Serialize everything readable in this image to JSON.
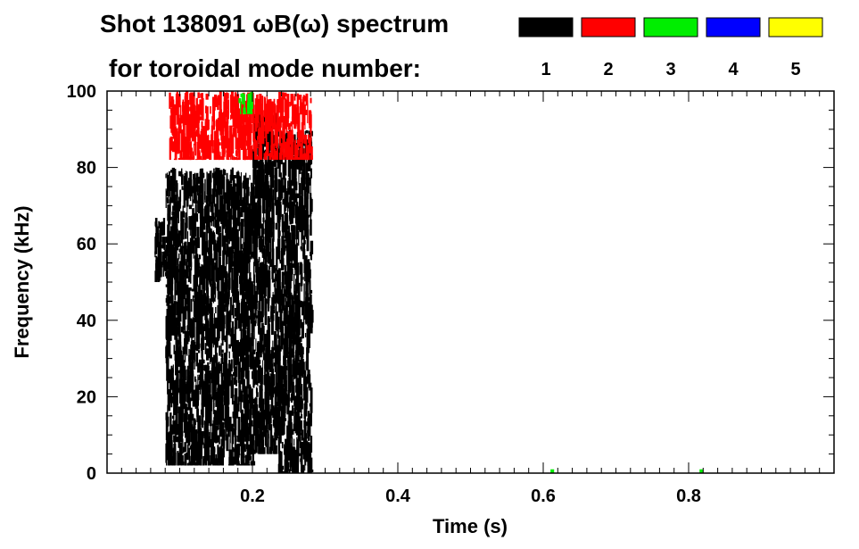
{
  "chart_data": {
    "type": "heatmap",
    "title_line1": "Shot 138091 ωB(ω) spectrum",
    "title_line2": "for toroidal mode number:",
    "xlabel": "Time (s)",
    "ylabel": "Frequency (kHz)",
    "xlim": [
      0.0,
      1.0
    ],
    "ylim": [
      0,
      100
    ],
    "x_ticks": [
      0.2,
      0.4,
      0.6,
      0.8
    ],
    "x_tick_labels": [
      "0.2",
      "0.4",
      "0.6",
      "0.8"
    ],
    "y_ticks": [
      0,
      20,
      40,
      60,
      80,
      100
    ],
    "y_tick_labels": [
      "0",
      "20",
      "40",
      "60",
      "80",
      "100"
    ],
    "legend": {
      "placement": "top-right",
      "entries": [
        {
          "label": "1",
          "color": "#000000"
        },
        {
          "label": "2",
          "color": "#ff0000"
        },
        {
          "label": "3",
          "color": "#00ee00"
        },
        {
          "label": "4",
          "color": "#0000ff"
        },
        {
          "label": "5",
          "color": "#ffff00"
        }
      ]
    },
    "regions": [
      {
        "mode": "1",
        "t_start": 0.065,
        "t_end": 0.08,
        "f_low": 50,
        "f_high": 67
      },
      {
        "mode": "1",
        "t_start": 0.08,
        "t_end": 0.2,
        "f_low": 2,
        "f_high": 80
      },
      {
        "mode": "1",
        "t_start": 0.2,
        "t_end": 0.235,
        "f_low": 5,
        "f_high": 95
      },
      {
        "mode": "1",
        "t_start": 0.235,
        "t_end": 0.28,
        "f_low": 0,
        "f_high": 90
      },
      {
        "mode": "2",
        "t_start": 0.085,
        "t_end": 0.28,
        "f_low": 82,
        "f_high": 100
      },
      {
        "mode": "3",
        "t_start": 0.18,
        "t_end": 0.2,
        "f_low": 94,
        "f_high": 100
      },
      {
        "mode": "3",
        "t_start": 0.61,
        "t_end": 0.615,
        "f_low": 0,
        "f_high": 1
      },
      {
        "mode": "3",
        "t_start": 0.815,
        "t_end": 0.82,
        "f_low": 0,
        "f_high": 1
      }
    ]
  }
}
